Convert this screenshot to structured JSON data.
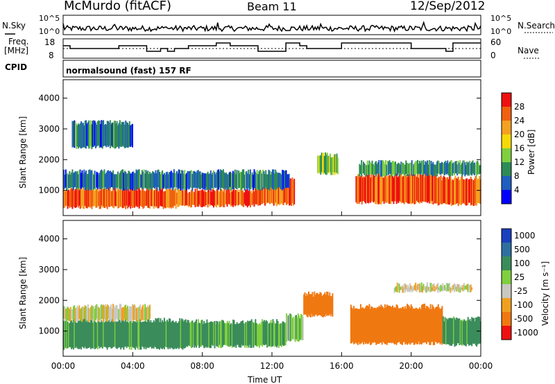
{
  "header": {
    "station": "McMurdo (fitACF)",
    "beam": "Beam 11",
    "date": "12/Sep/2012"
  },
  "noise_panel": {
    "left_label": "N.Sky",
    "right_label": "N.Search",
    "left_ticks": [
      "10^5",
      "10^0"
    ],
    "right_ticks": [
      "10^5",
      "10^0"
    ]
  },
  "freq_panel": {
    "left_label_line1": "Freq.",
    "left_label_line2": "[MHz]",
    "left_ticks": [
      "18",
      "8"
    ],
    "right_label": "Nave",
    "right_ticks": [
      "60",
      "0"
    ]
  },
  "cpid": {
    "label": "CPID",
    "program": "normalsound (fast) 157 RF"
  },
  "power_panel": {
    "ylabel": "Slant Range [km]",
    "yticks": [
      "4000",
      "3000",
      "2000",
      "1000"
    ],
    "colorbar_label": "Power [dB]",
    "colorbar_ticks": [
      "28",
      "24",
      "20",
      "16",
      "12",
      "8",
      "4"
    ],
    "colors": [
      "#0000ff",
      "#1f5fbf",
      "#2e8b57",
      "#7fcf3f",
      "#f5d90a",
      "#f5a020",
      "#f06010",
      "#ee1010"
    ]
  },
  "velocity_panel": {
    "ylabel": "Slant Range [km]",
    "yticks": [
      "4000",
      "3000",
      "2000",
      "1000"
    ],
    "colorbar_label": "Velocity [m s⁻¹]",
    "colorbar_ticks": [
      "1000",
      "500",
      "100",
      "25",
      "-25",
      "-100",
      "-500",
      "-1000"
    ],
    "colors": [
      "#1a3fbf",
      "#2e6fa0",
      "#3a8c5a",
      "#7fcf3f",
      "#c8c8c0",
      "#f0a020",
      "#f07810",
      "#ee1010"
    ]
  },
  "x_axis": {
    "ticks": [
      "00:00",
      "04:00",
      "08:00",
      "12:00",
      "16:00",
      "20:00",
      "00:00"
    ],
    "label": "Time UT"
  },
  "chart_data": {
    "type": "heatmap",
    "title": "McMurdo (fitACF)",
    "xlabel": "Time UT",
    "ylabel": "Slant Range [km]",
    "xlim": [
      0,
      24
    ],
    "ylim": [
      180,
      4600
    ],
    "freq_ylim": [
      8,
      18
    ],
    "nave_ylim": [
      0,
      60
    ],
    "power_bands": [
      {
        "start_h": 0.0,
        "end_h": 6.5,
        "range_lo": 450,
        "range_hi": 1050,
        "power_db": 26
      },
      {
        "start_h": 6.5,
        "end_h": 11.0,
        "range_lo": 500,
        "range_hi": 1000,
        "power_db": 27
      },
      {
        "start_h": 11.0,
        "end_h": 13.3,
        "range_lo": 550,
        "range_hi": 1350,
        "power_db": 26
      },
      {
        "start_h": 14.6,
        "end_h": 15.8,
        "range_lo": 1550,
        "range_hi": 2150,
        "power_db": 14
      },
      {
        "start_h": 16.8,
        "end_h": 21.5,
        "range_lo": 600,
        "range_hi": 1500,
        "power_db": 27
      },
      {
        "start_h": 21.5,
        "end_h": 24.0,
        "range_lo": 550,
        "range_hi": 1400,
        "power_db": 26
      },
      {
        "start_h": 0.0,
        "end_h": 13.0,
        "range_lo": 1050,
        "range_hi": 1600,
        "power_db": 8
      },
      {
        "start_h": 17.0,
        "end_h": 24.0,
        "range_lo": 1500,
        "range_hi": 1900,
        "power_db": 10
      },
      {
        "start_h": 0.5,
        "end_h": 4.0,
        "range_lo": 2400,
        "range_hi": 3200,
        "power_db": 8
      }
    ],
    "velocity_bands": [
      {
        "start_h": 0.0,
        "end_h": 7.0,
        "range_lo": 450,
        "range_hi": 1350,
        "velocity": 150
      },
      {
        "start_h": 7.0,
        "end_h": 12.8,
        "range_lo": 500,
        "range_hi": 1300,
        "velocity": 120
      },
      {
        "start_h": 12.8,
        "end_h": 13.8,
        "range_lo": 700,
        "range_hi": 1500,
        "velocity": 60
      },
      {
        "start_h": 13.8,
        "end_h": 15.5,
        "range_lo": 1500,
        "range_hi": 2200,
        "velocity": -200
      },
      {
        "start_h": 16.5,
        "end_h": 21.8,
        "range_lo": 600,
        "range_hi": 1800,
        "velocity": -300
      },
      {
        "start_h": 21.8,
        "end_h": 24.0,
        "range_lo": 550,
        "range_hi": 1400,
        "velocity": 150
      },
      {
        "start_h": 0.0,
        "end_h": 5.0,
        "range_lo": 1350,
        "range_hi": 1800,
        "velocity": 0
      },
      {
        "start_h": 19.0,
        "end_h": 23.5,
        "range_lo": 2300,
        "range_hi": 2500,
        "velocity": 0
      }
    ]
  }
}
